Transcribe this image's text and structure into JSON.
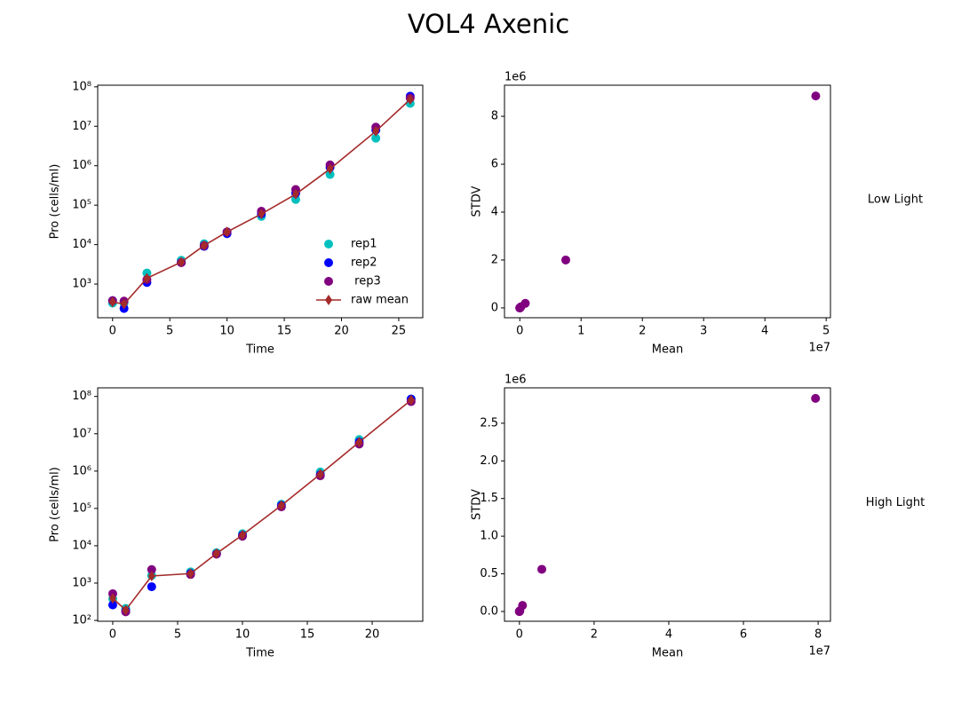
{
  "title": "VOL4 Axenic",
  "chart_data": [
    {
      "type": "line",
      "xlabel": "Time",
      "ylabel": "Pro (cells/ml)",
      "log_y": true,
      "legend": "lower right",
      "xlim": [
        -1.3,
        27.1
      ],
      "xticks": [
        0,
        5,
        10,
        15,
        20,
        25
      ],
      "ylim": [
        140,
        110000000
      ],
      "yticks": [
        {
          "value": 1000,
          "label": "10³"
        },
        {
          "value": 10000,
          "label": "10⁴"
        },
        {
          "value": 100000,
          "label": "10⁵"
        },
        {
          "value": 1000000,
          "label": "10⁶"
        },
        {
          "value": 10000000,
          "label": "10⁷"
        },
        {
          "value": 100000000,
          "label": "10⁸"
        }
      ],
      "x": [
        0,
        1,
        3,
        6,
        8,
        10,
        13,
        16,
        19,
        23,
        26
      ],
      "series": [
        {
          "name": "rep1",
          "color": "#00bfbf",
          "style": "scatter",
          "values": [
            330,
            330,
            1900,
            4000,
            10500,
            21000,
            52000,
            140000,
            600000,
            5000000,
            38000000
          ]
        },
        {
          "name": "rep2",
          "color": "#0000ff",
          "style": "scatter",
          "values": [
            380,
            240,
            1100,
            3500,
            9000,
            19000,
            60000,
            200000,
            900000,
            8000000,
            58000000
          ]
        },
        {
          "name": " rep3",
          "color": "#800080",
          "style": "scatter",
          "values": [
            380,
            370,
            1300,
            3500,
            9500,
            21000,
            70000,
            250000,
            1050000,
            9500000,
            52000000
          ]
        },
        {
          "name": "raw mean",
          "color": "#a52a2a",
          "style": "line",
          "values": [
            350,
            310,
            1400,
            3600,
            9500,
            21000,
            60000,
            190000,
            830000,
            7500000,
            48000000
          ]
        }
      ]
    },
    {
      "type": "scatter",
      "xlabel": "Mean",
      "ylabel": "STDV",
      "x_offset": "1e7",
      "y_offset": "1e6",
      "annotation": "Low Light",
      "xlim": [
        -0.25,
        5.07
      ],
      "xticks": [
        0,
        1,
        2,
        3,
        4,
        5
      ],
      "ylim": [
        -0.41,
        9.3
      ],
      "yticks": [
        0,
        2,
        4,
        6,
        8
      ],
      "series": [
        {
          "color": "#800080",
          "x": [
            4e-05,
            3e-05,
            0.00014,
            0.00036,
            0.00095,
            0.0021,
            0.006,
            0.019,
            0.09,
            0.75,
            4.83
          ],
          "values": [
            3e-05,
            7e-05,
            0.0004,
            0.0003,
            0.0008,
            0.001,
            0.009,
            0.05,
            0.19,
            2.0,
            8.85
          ]
        }
      ]
    },
    {
      "type": "line",
      "xlabel": "Time",
      "ylabel": "Pro (cells/ml)",
      "log_y": true,
      "xlim": [
        -1.16,
        23.9
      ],
      "xticks": [
        0,
        5,
        10,
        15,
        20
      ],
      "ylim": [
        95,
        170000000
      ],
      "yticks": [
        {
          "value": 100,
          "label": "10²"
        },
        {
          "value": 1000,
          "label": "10³"
        },
        {
          "value": 10000,
          "label": "10⁴"
        },
        {
          "value": 100000,
          "label": "10⁵"
        },
        {
          "value": 1000000,
          "label": "10⁶"
        },
        {
          "value": 10000000,
          "label": "10⁷"
        },
        {
          "value": 100000000,
          "label": "10⁸"
        }
      ],
      "x": [
        0,
        1,
        3,
        6,
        8,
        10,
        13,
        16,
        19,
        23
      ],
      "series": [
        {
          "color": "#00bfbf",
          "style": "scatter",
          "values": [
            380,
            210,
            1600,
            2000,
            6500,
            21000,
            130000,
            950000,
            7000000,
            85000000
          ]
        },
        {
          "color": "#0000ff",
          "style": "scatter",
          "values": [
            260,
            180,
            800,
            1800,
            6000,
            19000,
            120000,
            800000,
            6000000,
            85000000
          ]
        },
        {
          "color": "#800080",
          "style": "scatter",
          "values": [
            520,
            170,
            2300,
            1700,
            6000,
            18000,
            110000,
            750000,
            5300000,
            73000000
          ]
        },
        {
          "color": "#a52a2a",
          "style": "line",
          "values": [
            390,
            190,
            1550,
            1800,
            6200,
            19500,
            120000,
            830000,
            6000000,
            80000000
          ]
        }
      ]
    },
    {
      "type": "scatter",
      "xlabel": "Mean",
      "ylabel": "STDV",
      "x_offset": "1e7",
      "y_offset": "1e6",
      "annotation": "High Light",
      "xlim": [
        -0.4,
        8.33
      ],
      "xticks": [
        0,
        2,
        4,
        6,
        8
      ],
      "ylim": [
        -0.13,
        2.97
      ],
      "yticks": [
        {
          "value": 0,
          "label": "0.0"
        },
        {
          "value": 0.5,
          "label": "0.5"
        },
        {
          "value": 1,
          "label": "1.0"
        },
        {
          "value": 1.5,
          "label": "1.5"
        },
        {
          "value": 2,
          "label": "2.0"
        },
        {
          "value": 2.5,
          "label": "2.5"
        }
      ],
      "series": [
        {
          "color": "#800080",
          "x": [
            4e-05,
            2e-05,
            0.00016,
            0.00018,
            0.0006,
            0.002,
            0.012,
            0.083,
            0.6,
            7.93
          ],
          "values": [
            0.0001,
            2e-05,
            0.0006,
            1e-05,
            0.0003,
            0.001,
            0.01,
            0.08,
            0.56,
            2.83
          ]
        }
      ]
    }
  ]
}
